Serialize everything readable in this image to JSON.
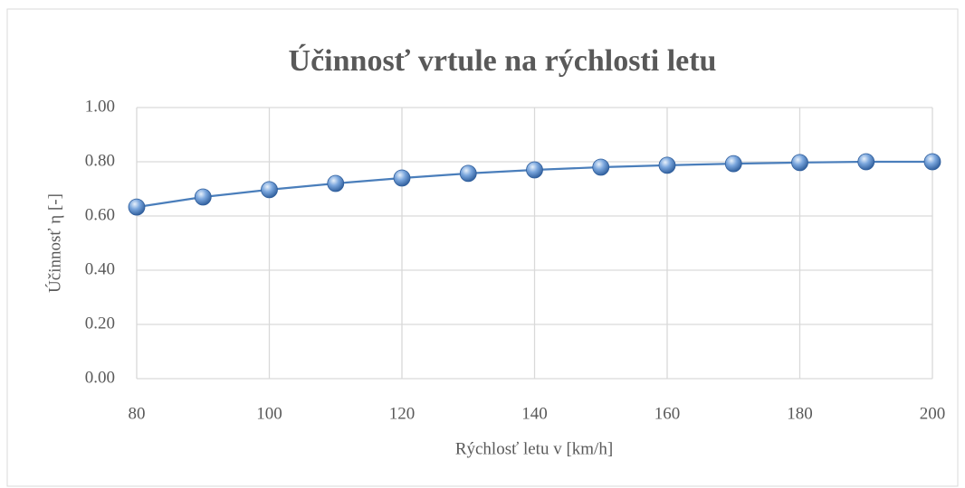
{
  "chart_data": {
    "type": "line",
    "title": "Účinnosť vrtule na rýchlosti letu",
    "x_label": "Rýchlosť letu v [km/h]",
    "y_label": "Účinnosť η [-]",
    "x": [
      80,
      90,
      100,
      110,
      120,
      130,
      140,
      150,
      160,
      170,
      180,
      190,
      200
    ],
    "series": [
      {
        "color": "#4a7ebb",
        "values": [
          0.633,
          0.67,
          0.697,
          0.72,
          0.74,
          0.757,
          0.77,
          0.78,
          0.787,
          0.793,
          0.797,
          0.8,
          0.8
        ]
      }
    ],
    "xlim": [
      80,
      200
    ],
    "xticks": [
      80,
      100,
      120,
      140,
      160,
      180,
      200
    ],
    "ylim": [
      0,
      1
    ],
    "yticks": [
      {
        "value": 0,
        "label": "0.00"
      },
      {
        "value": 0.2,
        "label": "0.20"
      },
      {
        "value": 0.4,
        "label": "0.40"
      },
      {
        "value": 0.6,
        "label": "0.60"
      },
      {
        "value": 0.8,
        "label": "0.80"
      },
      {
        "value": 1,
        "label": "1.00"
      }
    ],
    "grid": true
  }
}
